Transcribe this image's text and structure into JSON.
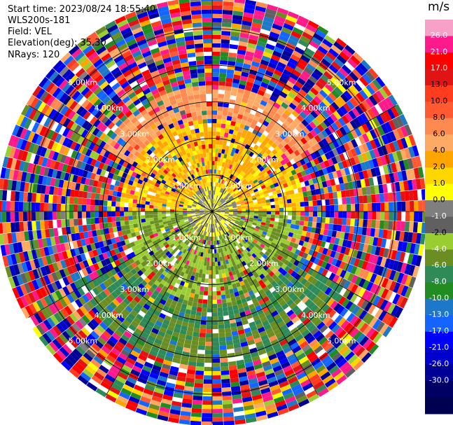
{
  "header": {
    "start_time": "Start time: 2023/08/24 18:55:40",
    "site": "WLS200s-181",
    "field": "Field: VEL",
    "elevation": "Elevation(deg): 35.30",
    "nrays": "NRays: 120"
  },
  "chart_data": {
    "type": "heatmap",
    "subtype": "ppi-polar",
    "field": "VEL",
    "units": "m/s",
    "elevation_deg": 35.3,
    "nrays": 120,
    "range_rings_km": [
      1.0,
      2.0,
      3.0,
      4.0,
      5.0
    ],
    "range_ring_labels": [
      "1.00km",
      "2.00km",
      "3.00km",
      "4.00km",
      "5.00km"
    ],
    "spokes_deg": [
      0,
      30,
      60,
      90,
      120,
      150,
      180,
      210,
      240,
      270,
      300,
      330
    ],
    "max_range_km": 5.8,
    "sector_mean_velocity": [
      {
        "azimuth_from": 270,
        "azimuth_to": 90,
        "range_km": [
          0.6,
          2.5
        ],
        "velocity": 2.0
      },
      {
        "azimuth_from": 90,
        "azimuth_to": 270,
        "range_km": [
          0.6,
          2.5
        ],
        "velocity": -4.0
      },
      {
        "azimuth_from": 300,
        "azimuth_to": 60,
        "range_km": [
          2.5,
          3.4
        ],
        "velocity": 6.0
      },
      {
        "azimuth_from": 120,
        "azimuth_to": 240,
        "range_km": [
          2.5,
          4.2
        ],
        "velocity": -6.0
      }
    ],
    "colorbar": {
      "title": "m/s",
      "ticks": [
        "26.0",
        "21.0",
        "17.0",
        "13.0",
        "10.0",
        "8.0",
        "6.0",
        "4.0",
        "2.0",
        "1.0",
        "0.0",
        "-1.0",
        "-2.0",
        "-4.0",
        "-6.0",
        "-8.0",
        "-10.0",
        "-13.0",
        "-17.0",
        "-21.0",
        "-26.0",
        "-30.0"
      ],
      "colors": [
        "#f7a0c8",
        "#ff1a8c",
        "#ff0000",
        "#e01414",
        "#ff3c1e",
        "#ff5a32",
        "#ff8a50",
        "#ffaa64",
        "#ffa500",
        "#ffd700",
        "#ffff00",
        "#7f7f7f",
        "#606060",
        "#9acd32",
        "#6b8e23",
        "#2e8b57",
        "#228b22",
        "#1e78c8",
        "#1464ff",
        "#0000ff",
        "#0000cd",
        "#000096",
        "#000064",
        "#000050"
      ]
    }
  }
}
